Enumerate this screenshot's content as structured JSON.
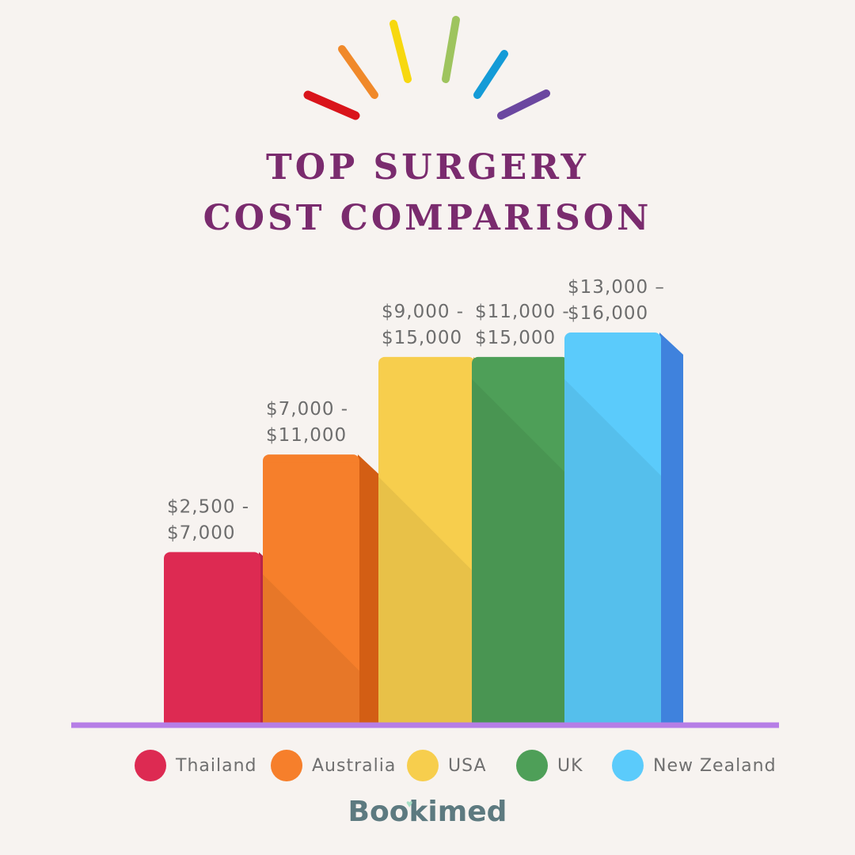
{
  "title_line1": "TOP SURGERY",
  "title_line2": "COST COMPARISON",
  "brand": "Bookimed",
  "decor_colors": [
    "#d9141b",
    "#f0892a",
    "#f7d80f",
    "#9ec45e",
    "#149bd7",
    "#6b47a0"
  ],
  "chart_data": {
    "type": "bar",
    "title": "TOP SURGERY COST COMPARISON",
    "categories": [
      "Thailand",
      "Australia",
      "USA",
      "UK",
      "New Zealand"
    ],
    "value_labels": [
      [
        "$2,500 -",
        "$7,000"
      ],
      [
        "$7,000 -",
        "$11,000"
      ],
      [
        "$9,000 -",
        "$15,000"
      ],
      [
        "$11,000 -",
        "$15,000"
      ],
      [
        "$13,000 –",
        "$16,000"
      ]
    ],
    "series": [
      {
        "low": [
          2500,
          7000,
          9000,
          11000,
          13000
        ],
        "high": [
          7000,
          11000,
          15000,
          15000,
          16000
        ]
      }
    ],
    "colors": [
      "#dd2a52",
      "#f67f2b",
      "#f7ce4d",
      "#4e9f58",
      "#5bcbfb"
    ],
    "side_colors": [
      "#b82448",
      "#d35e14",
      "#d8b23a",
      "#2f6e37",
      "#3f82dd"
    ],
    "baseline_color": "#b67ee6",
    "legend_position": "bottom"
  }
}
